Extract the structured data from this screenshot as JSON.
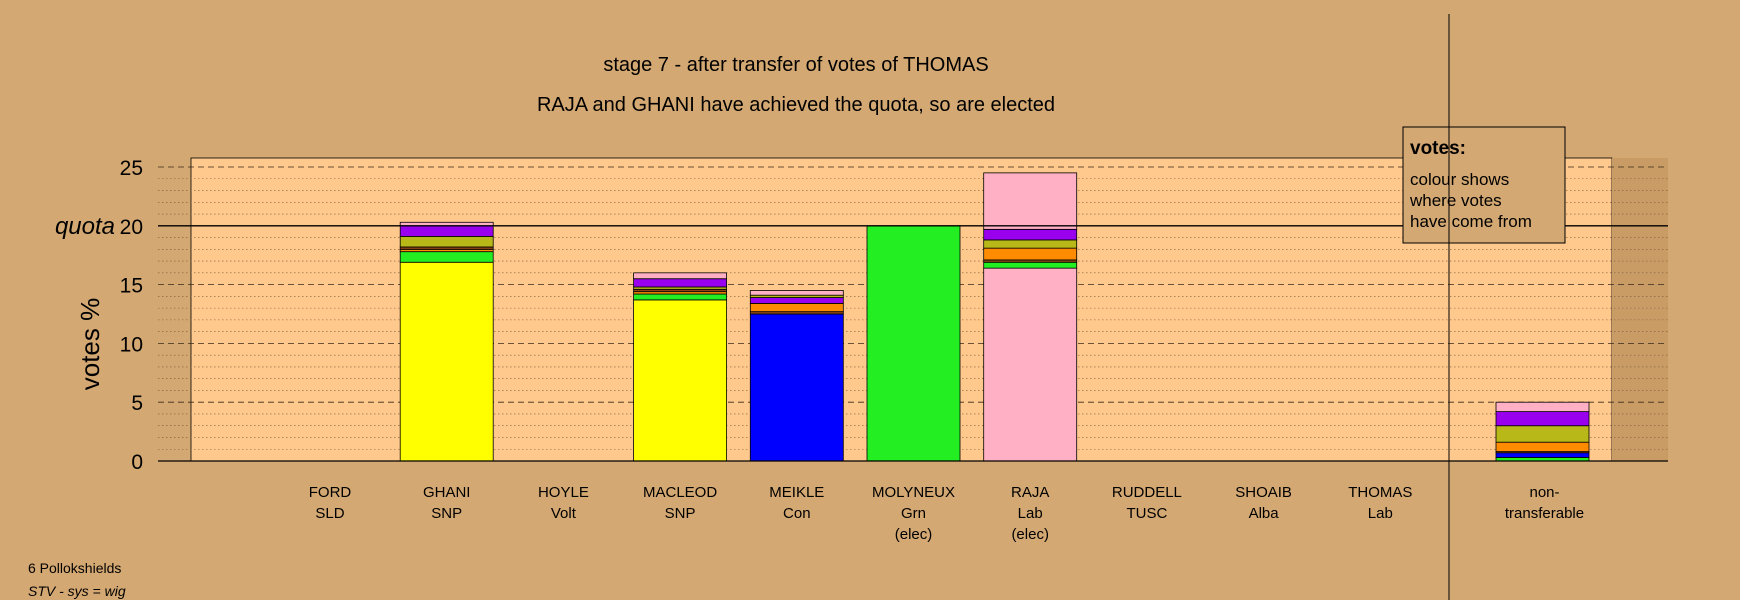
{
  "chart_data": {
    "type": "bar",
    "title": "stage 7 - after transfer of votes of THOMAS",
    "subtitle": "RAJA and GHANI have achieved the quota, so are elected",
    "ylabel": "votes %",
    "ylim": [
      0,
      25
    ],
    "yticks": [
      "0",
      "5",
      "10",
      "15",
      "20",
      "25"
    ],
    "quota": 20,
    "quota_label": "quota",
    "legend": {
      "title": "votes:",
      "lines": [
        "colour shows",
        "where votes",
        "have come from"
      ]
    },
    "colors": {
      "SNP": "#ffff00",
      "Grn": "#22ee22",
      "Con": "#0000ff",
      "Lab": "#ffb0c4",
      "Alba": "#9900ee",
      "TUSC": "#b8b818",
      "Volt": "#ff8c00",
      "SLD": "#8b4513",
      "background": "#d4a872",
      "plot": "#ffc88c"
    },
    "categories": [
      {
        "name": "FORD",
        "party": "SLD",
        "note": "",
        "segments": []
      },
      {
        "name": "GHANI",
        "party": "SNP",
        "note": "",
        "segments": [
          {
            "source": "SNP",
            "value": 16.9
          },
          {
            "source": "Grn",
            "value": 0.9
          },
          {
            "source": "Volt",
            "value": 0.2
          },
          {
            "source": "SLD",
            "value": 0.2
          },
          {
            "source": "TUSC",
            "value": 0.9
          },
          {
            "source": "Alba",
            "value": 0.9
          },
          {
            "source": "Lab",
            "value": 0.3
          }
        ]
      },
      {
        "name": "HOYLE",
        "party": "Volt",
        "note": "",
        "segments": []
      },
      {
        "name": "MACLEOD",
        "party": "SNP",
        "note": "",
        "segments": [
          {
            "source": "SNP",
            "value": 13.7
          },
          {
            "source": "Grn",
            "value": 0.5
          },
          {
            "source": "Volt",
            "value": 0.2
          },
          {
            "source": "SLD",
            "value": 0.2
          },
          {
            "source": "TUSC",
            "value": 0.2
          },
          {
            "source": "Alba",
            "value": 0.7
          },
          {
            "source": "Lab",
            "value": 0.5
          }
        ]
      },
      {
        "name": "MEIKLE",
        "party": "Con",
        "note": "",
        "segments": [
          {
            "source": "Con",
            "value": 12.5
          },
          {
            "source": "SLD",
            "value": 0.2
          },
          {
            "source": "Volt",
            "value": 0.7
          },
          {
            "source": "Alba",
            "value": 0.5
          },
          {
            "source": "TUSC",
            "value": 0.2
          },
          {
            "source": "Lab",
            "value": 0.4
          }
        ]
      },
      {
        "name": "MOLYNEUX",
        "party": "Grn",
        "note": "(elec)",
        "segments": [
          {
            "source": "Grn",
            "value": 20.0
          }
        ]
      },
      {
        "name": "RAJA",
        "party": "Lab",
        "note": "(elec)",
        "segments": [
          {
            "source": "Lab",
            "value": 16.4
          },
          {
            "source": "Grn",
            "value": 0.5
          },
          {
            "source": "SLD",
            "value": 0.2
          },
          {
            "source": "Volt",
            "value": 1.0
          },
          {
            "source": "TUSC",
            "value": 0.7
          },
          {
            "source": "Alba",
            "value": 0.9
          },
          {
            "source": "Lab",
            "value": 4.8
          }
        ]
      },
      {
        "name": "RUDDELL",
        "party": "TUSC",
        "note": "",
        "segments": []
      },
      {
        "name": "SHOAIB",
        "party": "Alba",
        "note": "",
        "segments": []
      },
      {
        "name": "THOMAS",
        "party": "Lab",
        "note": "",
        "segments": []
      }
    ],
    "nontransferable": {
      "label_line1": "non-",
      "label_line2": "transferable",
      "segments": [
        {
          "source": "Grn",
          "value": 0.3
        },
        {
          "source": "Con",
          "value": 0.4
        },
        {
          "source": "SLD",
          "value": 0.1
        },
        {
          "source": "Volt",
          "value": 0.8
        },
        {
          "source": "TUSC",
          "value": 1.4
        },
        {
          "source": "Alba",
          "value": 1.2
        },
        {
          "source": "Lab",
          "value": 0.8
        }
      ]
    }
  },
  "footer": {
    "area": "6 Pollokshields",
    "system": "STV - sys = wig"
  }
}
